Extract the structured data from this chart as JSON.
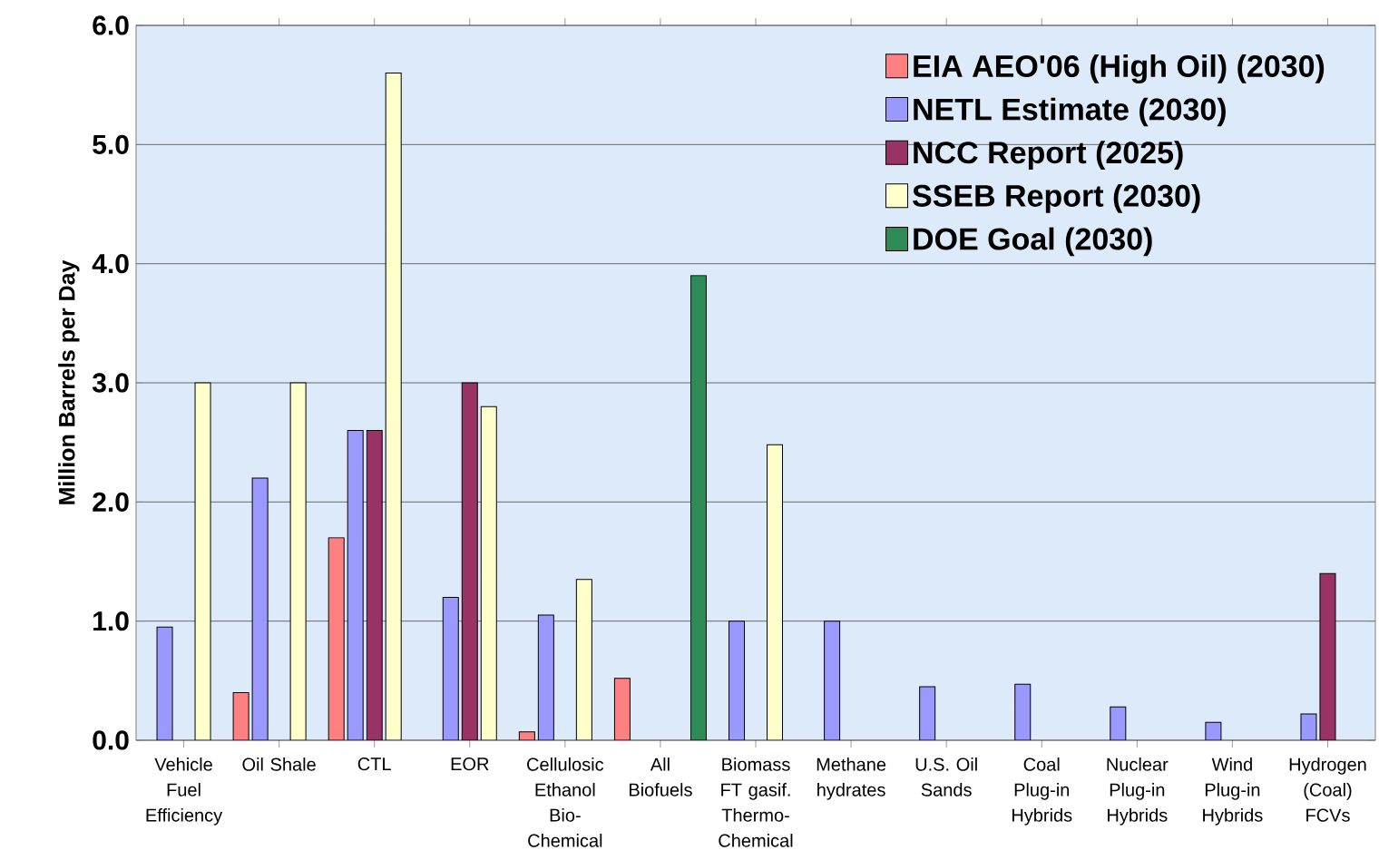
{
  "chart_data": {
    "type": "bar",
    "ylabel": "Million Barrels per Day",
    "categories": [
      "Vehicle Fuel Efficiency",
      "Oil Shale",
      "CTL",
      "EOR",
      "Cellulosic Ethanol Bio-Chemical",
      "All Biofuels",
      "Biomass FT gasif. Thermo-Chemical",
      "Methane hydrates",
      "U.S. Oil Sands",
      "Coal Plug-in Hybrids",
      "Nuclear Plug-in Hybrids",
      "Wind Plug-in Hybrids",
      "Hydrogen (Coal) FCVs"
    ],
    "series": [
      {
        "name": "EIA AEO'06 (High Oil) (2030)",
        "color": "#ff8080",
        "values": [
          null,
          0.4,
          1.7,
          null,
          0.07,
          0.52,
          null,
          null,
          null,
          null,
          null,
          null,
          null
        ]
      },
      {
        "name": "NETL Estimate (2030)",
        "color": "#9999ff",
        "values": [
          0.95,
          2.2,
          2.6,
          1.2,
          1.05,
          null,
          1.0,
          1.0,
          0.45,
          0.47,
          0.28,
          0.15,
          0.22
        ]
      },
      {
        "name": "NCC Report (2025)",
        "color": "#993366",
        "values": [
          null,
          null,
          2.6,
          3.0,
          null,
          null,
          null,
          null,
          null,
          null,
          null,
          null,
          1.4
        ]
      },
      {
        "name": "SSEB Report (2030)",
        "color": "#ffffcc",
        "values": [
          3.0,
          3.0,
          5.6,
          2.8,
          1.35,
          null,
          2.48,
          null,
          null,
          null,
          null,
          null,
          null
        ]
      },
      {
        "name": "DOE Goal (2030)",
        "color": "#2e8b57",
        "values": [
          null,
          null,
          null,
          null,
          null,
          3.9,
          null,
          null,
          null,
          null,
          null,
          null,
          null
        ]
      }
    ],
    "ylim": [
      0,
      6
    ],
    "yticks": [
      {
        "value": 0,
        "label": "0.0"
      },
      {
        "value": 1,
        "label": "1.0"
      },
      {
        "value": 2,
        "label": "2.0"
      },
      {
        "value": 3,
        "label": "3.0"
      },
      {
        "value": 4,
        "label": "4.0"
      },
      {
        "value": 5,
        "label": "5.0"
      },
      {
        "value": 6,
        "label": "6.0"
      }
    ],
    "grid": "y",
    "legend": "top right"
  }
}
